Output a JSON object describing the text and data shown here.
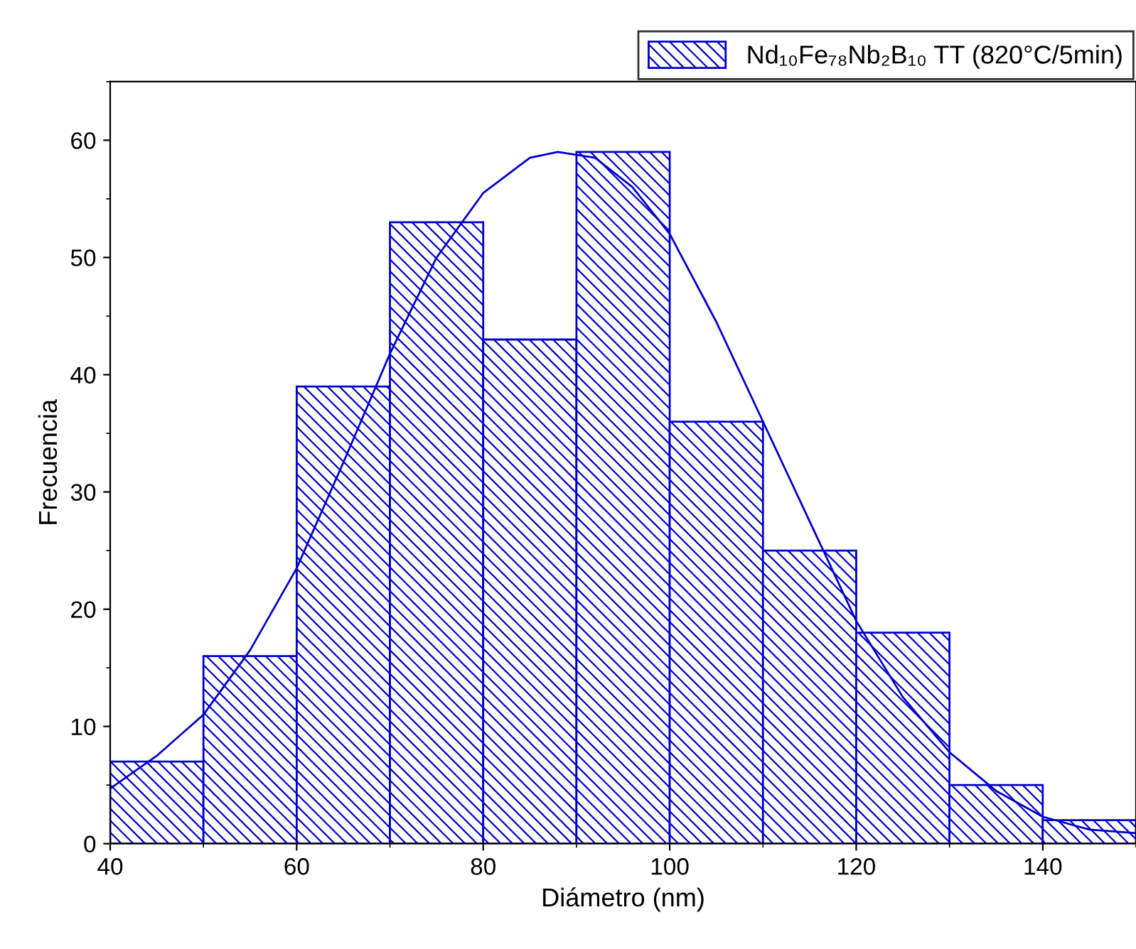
{
  "chart_data": {
    "type": "histogram",
    "xlabel": "Diámetro (nm)",
    "ylabel": "Frecuencia",
    "bins": [
      40,
      50,
      60,
      70,
      80,
      90,
      100,
      110,
      120,
      130,
      140,
      150
    ],
    "series": [
      {
        "type": "histogram",
        "name": "Nd₁₀Fe₇₈Nb₂B₁₀ TT (820°C/5min)",
        "color": "#0000cc",
        "values": [
          7,
          16,
          39,
          53,
          43,
          59,
          36,
          25,
          18,
          5,
          2
        ]
      },
      {
        "type": "line",
        "color": "#0000cc",
        "x": [
          40,
          45,
          50,
          55,
          60,
          65,
          70,
          75,
          80,
          85,
          88,
          92,
          96,
          100,
          105,
          110,
          115,
          120,
          125,
          130,
          135,
          140,
          145,
          150
        ],
        "values": [
          4.7,
          7.5,
          11,
          16.5,
          23.5,
          32.5,
          41.8,
          50,
          55.5,
          58.5,
          59,
          58.5,
          56,
          52,
          44.5,
          36,
          27.5,
          19,
          12.5,
          7.8,
          4.5,
          2.3,
          1.2,
          0.9
        ]
      }
    ],
    "xlim": [
      40,
      150
    ],
    "ylim": [
      0,
      65
    ],
    "xticks": [
      40,
      60,
      80,
      100,
      120,
      140
    ],
    "yticks": [
      0,
      10,
      20,
      30,
      40,
      50,
      60
    ],
    "grid": false,
    "legend": "top right"
  }
}
